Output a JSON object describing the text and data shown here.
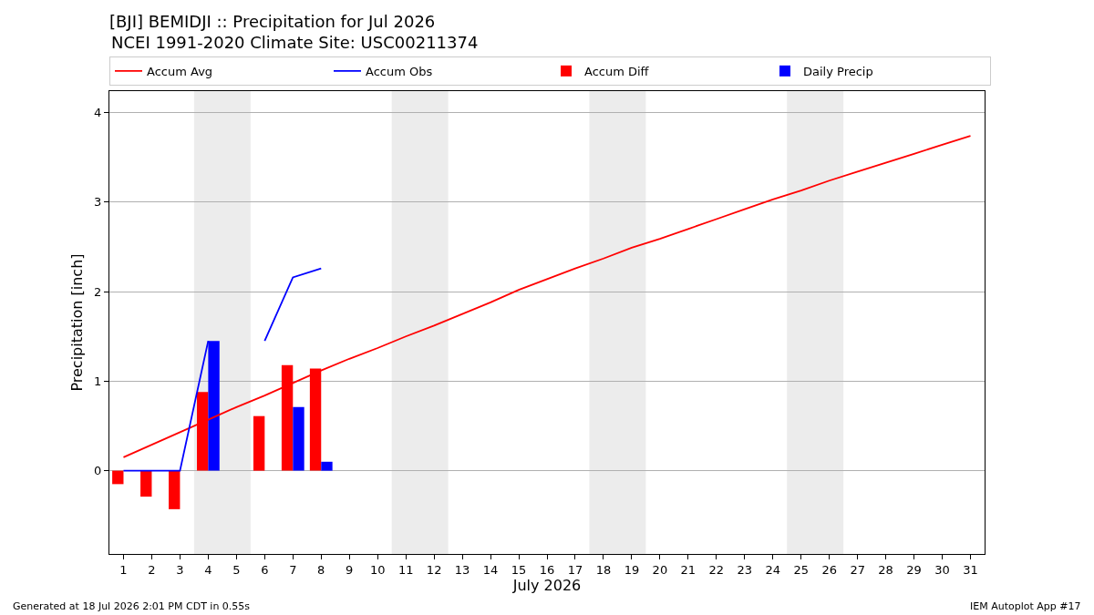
{
  "chart_data": {
    "type": "bar",
    "title": "[BJI] BEMIDJI :: Precipitation for Jul 2026",
    "subtitle": "NCEI 1991-2020 Climate Site: USC00211374",
    "xlabel": "July 2026",
    "ylabel": "Precipitation [inch]",
    "x": [
      1,
      2,
      3,
      4,
      5,
      6,
      7,
      8,
      9,
      10,
      11,
      12,
      13,
      14,
      15,
      16,
      17,
      18,
      19,
      20,
      21,
      22,
      23,
      24,
      25,
      26,
      27,
      28,
      29,
      30,
      31
    ],
    "series": [
      {
        "name": "Accum Avg",
        "type": "line",
        "color": "#ff0000",
        "values": [
          0.15,
          0.29,
          0.43,
          0.57,
          0.71,
          0.84,
          0.98,
          1.12,
          1.25,
          1.37,
          1.5,
          1.62,
          1.75,
          1.88,
          2.02,
          2.14,
          2.26,
          2.37,
          2.49,
          2.59,
          2.7,
          2.81,
          2.92,
          3.03,
          3.13,
          3.24,
          3.34,
          3.44,
          3.54,
          3.64,
          3.74
        ]
      },
      {
        "name": "Accum Obs",
        "type": "line",
        "color": "#0000ff",
        "values": [
          0,
          0,
          0,
          1.45,
          null,
          1.45,
          2.16,
          2.26,
          null,
          null,
          null,
          null,
          null,
          null,
          null,
          null,
          null,
          null,
          null,
          null,
          null,
          null,
          null,
          null,
          null,
          null,
          null,
          null,
          null,
          null,
          null
        ]
      },
      {
        "name": "Accum Diff",
        "color": "#ff0000",
        "values": [
          -0.15,
          -0.29,
          -0.43,
          0.88,
          null,
          0.61,
          1.18,
          1.14,
          null,
          null,
          null,
          null,
          null,
          null,
          null,
          null,
          null,
          null,
          null,
          null,
          null,
          null,
          null,
          null,
          null,
          null,
          null,
          null,
          null,
          null,
          null
        ]
      },
      {
        "name": "Daily Precip",
        "color": "#0000ff",
        "values": [
          0,
          0,
          0,
          1.45,
          null,
          0,
          0.71,
          0.1,
          null,
          null,
          null,
          null,
          null,
          null,
          null,
          null,
          null,
          null,
          null,
          null,
          null,
          null,
          null,
          null,
          null,
          null,
          null,
          null,
          null,
          null,
          null
        ]
      }
    ],
    "xlim": [
      0.5,
      31.5
    ],
    "xticks": [
      1,
      2,
      3,
      4,
      5,
      6,
      7,
      8,
      9,
      10,
      11,
      12,
      13,
      14,
      15,
      16,
      17,
      18,
      19,
      20,
      21,
      22,
      23,
      24,
      25,
      26,
      27,
      28,
      29,
      30,
      31
    ],
    "ylim": [
      -0.93,
      4.24
    ],
    "yticks": [
      0,
      1,
      2,
      3,
      4
    ],
    "bands": [
      {
        "axis": "x",
        "from": 3.5,
        "to": 5.5,
        "color": "#ececec"
      },
      {
        "axis": "x",
        "from": 10.5,
        "to": 12.5,
        "color": "#ececec"
      },
      {
        "axis": "x",
        "from": 17.5,
        "to": 19.5,
        "color": "#ececec"
      },
      {
        "axis": "x",
        "from": 24.5,
        "to": 26.5,
        "color": "#ececec"
      }
    ],
    "grid": "y",
    "legend": "top",
    "marker": "none",
    "line_style": "solid",
    "annotations": [
      "Generated at 18 Jul 2026 2:01 PM CDT in 0.55s",
      "IEM Autoplot App #17"
    ]
  }
}
